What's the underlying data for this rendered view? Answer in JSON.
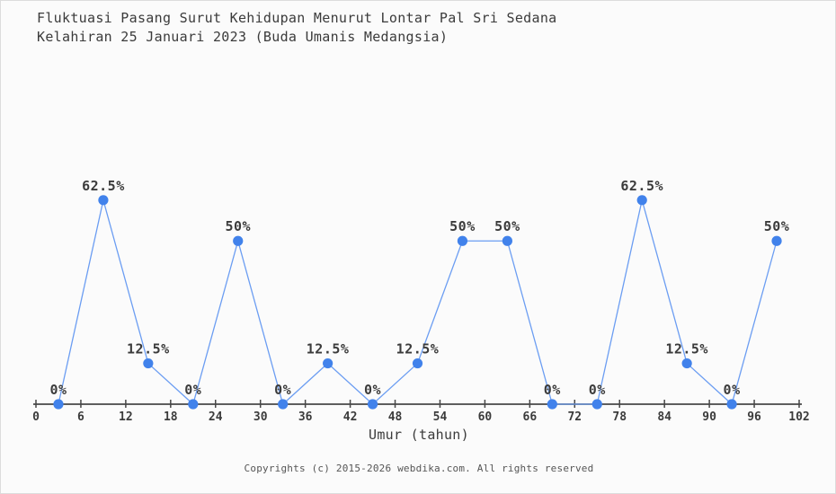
{
  "page": {
    "title_line1": "Fluktuasi Pasang Surut Kehidupan Menurut Lontar Pal Sri Sedana",
    "title_line2": "Kelahiran 25 Januari 2023 (Buda Umanis Medangsia)",
    "footer": "Copyrights (c) 2015-2026 webdika.com. All rights reserved"
  },
  "chart_data": {
    "type": "line",
    "title": "Fluktuasi Pasang Surut Kehidupan Menurut Lontar Pal Sri Sedana Kelahiran 25 Januari 2023 (Buda Umanis Medangsia)",
    "xlabel": "Umur (tahun)",
    "ylabel": "",
    "x": [
      3,
      9,
      15,
      21,
      27,
      33,
      39,
      45,
      51,
      57,
      63,
      69,
      75,
      81,
      87,
      93,
      99
    ],
    "values": [
      0,
      62.5,
      12.5,
      0,
      50,
      0,
      12.5,
      0,
      12.5,
      50,
      50,
      0,
      0,
      62.5,
      12.5,
      0,
      50
    ],
    "point_labels": [
      "0%",
      "62.5%",
      "12.5%",
      "0%",
      "50%",
      "0%",
      "12.5%",
      "0%",
      "12.5%",
      "50%",
      "50%",
      "0%",
      "0%",
      "62.5%",
      "12.5%",
      "0%",
      "50%"
    ],
    "x_ticks": [
      0,
      6,
      12,
      18,
      24,
      30,
      36,
      42,
      48,
      54,
      60,
      66,
      72,
      78,
      84,
      90,
      96,
      102
    ],
    "xlim": [
      0,
      102
    ],
    "ylim": [
      0,
      100
    ],
    "grid": false,
    "legend": "none",
    "colors": {
      "line": "#6b9df2",
      "marker": "#4182eb",
      "axis": "#474747",
      "tick_text": "#3b3b3b",
      "point_label_text": "#3b3b3b",
      "title_text": "#3b3b3b",
      "footer_text": "#555555",
      "background": "#fbfbfb",
      "border": "#dcdcdc"
    }
  }
}
